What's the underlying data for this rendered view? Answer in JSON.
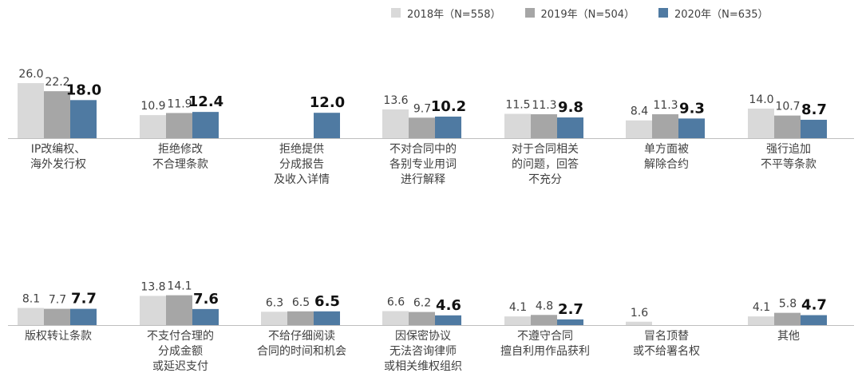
{
  "colors": {
    "s2018": "#d9d9d9",
    "s2019": "#a6a6a6",
    "s2020": "#4f7aa2",
    "baseline": "#bfbfbf",
    "text": "#404040",
    "textStrong": "#111111"
  },
  "chart_data": {
    "type": "bar",
    "title": "",
    "xlabel": "",
    "ylabel": "",
    "ylim": [
      0,
      26.0
    ],
    "grid": false,
    "legend_position": "top-right",
    "series": [
      {
        "name": "2018年（N=558）",
        "values": [
          26.0,
          10.9,
          null,
          13.6,
          11.5,
          8.4,
          14.0,
          8.1,
          13.8,
          6.3,
          6.6,
          4.1,
          1.6,
          4.1
        ]
      },
      {
        "name": "2019年（N=504）",
        "values": [
          22.2,
          11.9,
          null,
          9.7,
          11.3,
          11.3,
          10.7,
          7.7,
          14.1,
          6.5,
          6.2,
          4.8,
          null,
          5.8
        ]
      },
      {
        "name": "2020年（N=635）",
        "values": [
          18.0,
          12.4,
          12.0,
          10.2,
          9.8,
          9.3,
          8.7,
          7.7,
          7.6,
          6.5,
          4.6,
          2.7,
          null,
          4.7
        ]
      }
    ],
    "value_labels": [
      [
        "26.0",
        "10.9",
        "",
        "13.6",
        "11.5",
        "8.4",
        "14.0",
        "8.1",
        "13.8",
        "6.3",
        "6.6",
        "4.1",
        "1.6",
        "4.1"
      ],
      [
        "22.2",
        "11.9",
        "",
        "9.7",
        "11.3",
        "11.3",
        "10.7",
        "7.7",
        "14.1",
        "6.5",
        "6.2",
        "4.8",
        "",
        "5.8"
      ],
      [
        "18.0",
        "12.4",
        "12.0",
        "10.2",
        "9.8",
        "9.3",
        "8.7",
        "7.7",
        "7.6",
        "6.5",
        "4.6",
        "2.7",
        "",
        "4.7"
      ]
    ],
    "categories": [
      [
        "IP改编权、",
        "海外发行权"
      ],
      [
        "拒绝修改",
        "不合理条款"
      ],
      [
        "拒绝提供",
        "分成报告",
        "及收入详情"
      ],
      [
        "不对合同中的",
        "各别专业用词",
        "进行解释"
      ],
      [
        "对于合同相关",
        "的问题，回答",
        "不充分"
      ],
      [
        "单方面被",
        "解除合约"
      ],
      [
        "强行追加",
        "不平等条款"
      ],
      [
        "版权转让条款"
      ],
      [
        "不支付合理的",
        "分成金额",
        "或延迟支付"
      ],
      [
        "不给仔细阅读",
        "合同的时间和机会"
      ],
      [
        "因保密协议",
        "无法咨询律师",
        "或相关维权组织"
      ],
      [
        "不遵守合同",
        "擅自利用作品获利"
      ],
      [
        "冒名顶替",
        "或不给署名权"
      ],
      [
        "其他"
      ]
    ]
  }
}
